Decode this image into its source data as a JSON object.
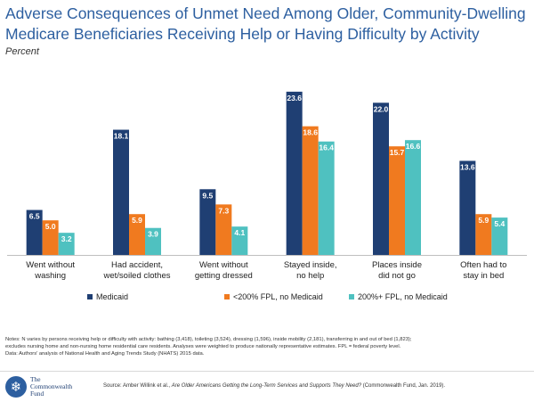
{
  "chart_data": {
    "type": "bar",
    "title": "Adverse Consequences of Unmet Need Among Older, Community-Dwelling Medicare Beneficiaries Receiving Help or Having Difficulty by Activity",
    "subtitle": "Percent",
    "categories": [
      [
        "Went without",
        "washing"
      ],
      [
        "Had accident,",
        "wet/soiled clothes"
      ],
      [
        "Went without",
        "getting dressed"
      ],
      [
        "Stayed inside,",
        "no help"
      ],
      [
        "Places inside",
        "did not go"
      ],
      [
        "Often had to",
        "stay in bed"
      ]
    ],
    "series": [
      {
        "name": "Medicaid",
        "color": "#1f3f73",
        "values": [
          6.5,
          18.1,
          9.5,
          23.6,
          22.0,
          13.6
        ]
      },
      {
        "name": "<200% FPL, no Medicaid",
        "color": "#f07a1f",
        "values": [
          5.0,
          5.9,
          7.3,
          18.6,
          15.7,
          5.9
        ]
      },
      {
        "name": "200%+ FPL, no Medicaid",
        "color": "#4fc1c0",
        "values": [
          3.2,
          3.9,
          4.1,
          16.4,
          16.6,
          5.4
        ]
      }
    ],
    "value_labels": [
      [
        "6.5",
        "18.1",
        "9.5",
        "23.6",
        "22.0",
        "13.6"
      ],
      [
        "5.0",
        "5.9",
        "7.3",
        "18.6",
        "15.7",
        "5.9"
      ],
      [
        "3.2",
        "3.9",
        "4.1",
        "16.4",
        "16.6",
        "5.4"
      ]
    ],
    "ylim": [
      0,
      25
    ],
    "grid": false,
    "legend_position": "bottom"
  },
  "notes": [
    "Notes: N varies by persons receiving help or difficulty with activity: bathing (3,418), toileting (3,524), dressing (1,596), inside mobility (2,181), transferring in and out of bed (1,823);",
    "excludes nursing home and non-nursing home residential care residents. Analyses were weighted to produce nationally representative estimates. FPL = federal poverty level.",
    "Data: Authors' analysis of National Health and Aging Trends Study (NHATS) 2015 data."
  ],
  "source": {
    "prefix": "Source: Amber Willink et al., ",
    "title": "Are Older Americans Getting the Long-Term Services and Supports They Need?",
    "suffix": " (Commonwealth Fund, Jan. 2019)."
  },
  "logo": {
    "lines": [
      "The",
      "Commonwealth",
      "Fund"
    ],
    "seal_glyph": "❄"
  }
}
